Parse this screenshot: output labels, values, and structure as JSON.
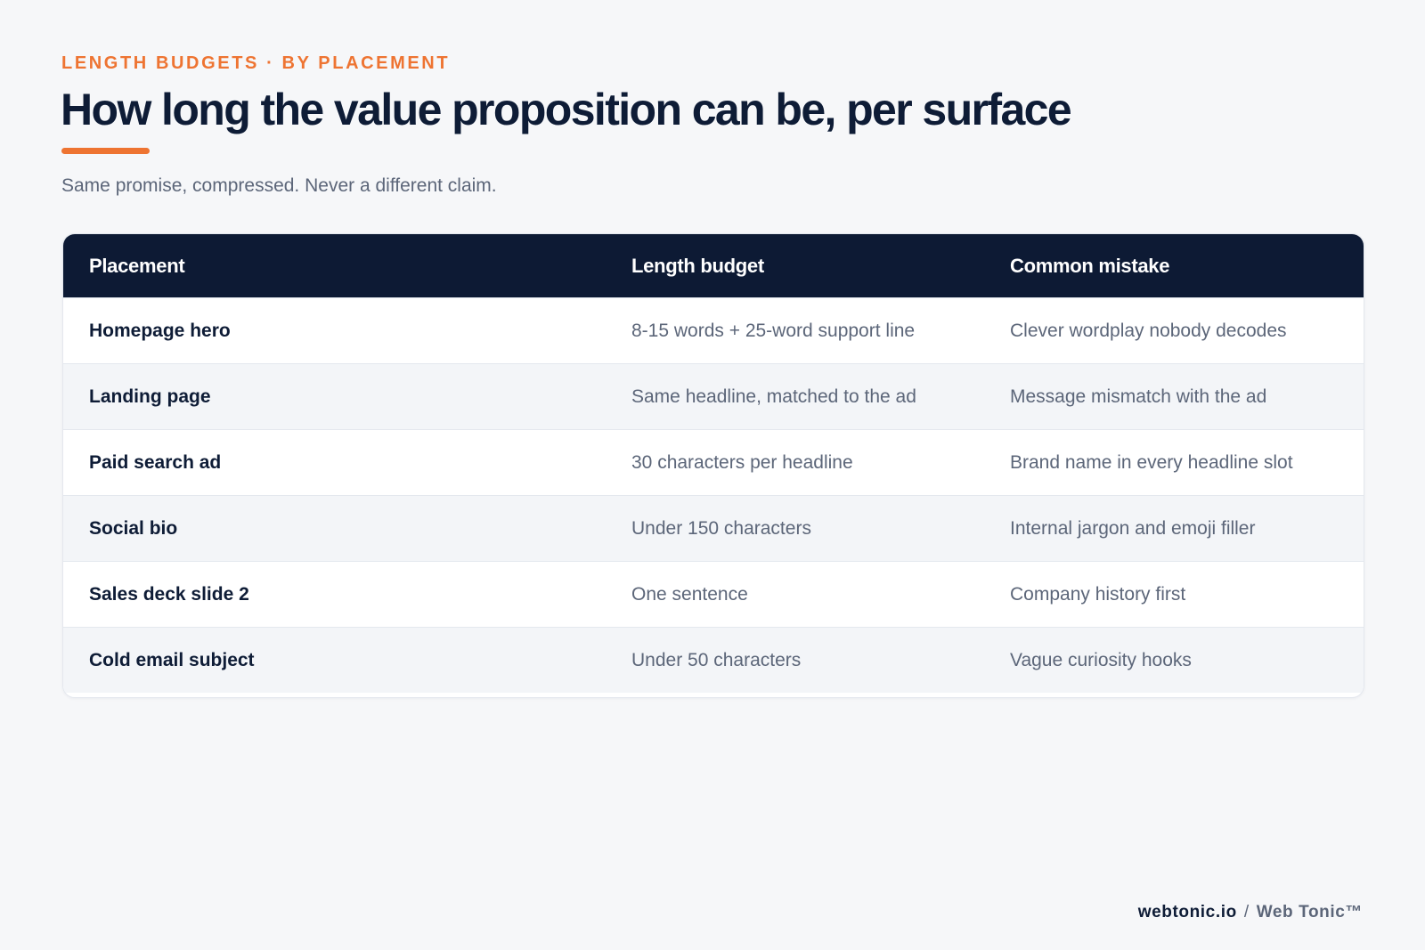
{
  "header": {
    "eyebrow": "LENGTH BUDGETS · BY PLACEMENT",
    "title": "How long the value proposition can be, per surface",
    "subtitle": "Same promise, compressed. Never a different claim."
  },
  "table": {
    "columns": [
      "Placement",
      "Length budget",
      "Common mistake"
    ],
    "rows": [
      [
        "Homepage hero",
        "8-15 words + 25-word support line",
        "Clever wordplay nobody decodes"
      ],
      [
        "Landing page",
        "Same headline, matched to the ad",
        "Message mismatch with the ad"
      ],
      [
        "Paid search ad",
        "30 characters per headline",
        "Brand name in every headline slot"
      ],
      [
        "Social bio",
        "Under 150 characters",
        "Internal jargon and emoji filler"
      ],
      [
        "Sales deck slide 2",
        "One sentence",
        "Company history first"
      ],
      [
        "Cold email subject",
        "Under 50 characters",
        "Vague curiosity hooks"
      ]
    ]
  },
  "footer": {
    "domain": "webtonic.io",
    "separator": "/",
    "brand": "Web Tonic™"
  },
  "colors": {
    "accent": "#ee7432",
    "navy": "#0d1a34",
    "muted_text": "#5c6679",
    "background": "#f6f7f9"
  }
}
